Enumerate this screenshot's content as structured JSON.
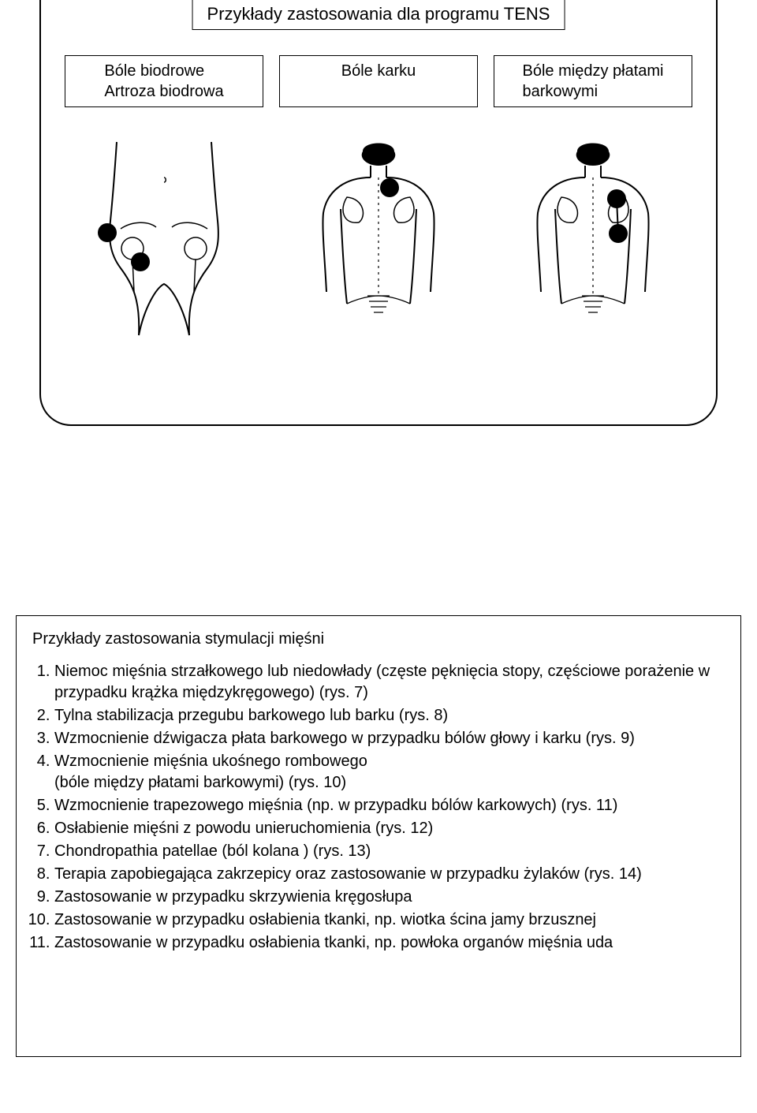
{
  "diagram": {
    "title": "Przykłady zastosowania dla programu TENS",
    "labels": [
      "Bóle biodrowe\nArtroza biodrowa",
      "Bóle karku",
      "Bóle między płatami\nbarkowymi"
    ],
    "stroke": "#000000",
    "fill": "#ffffff",
    "electrode_color": "#000000",
    "electrode_radius": 12,
    "electrodes": {
      "hip": [
        [
          38,
          125
        ],
        [
          80,
          162
        ]
      ],
      "neck": [
        [
          124,
          68
        ]
      ],
      "shoulder": [
        [
          140,
          82
        ],
        [
          142,
          126
        ]
      ]
    }
  },
  "list": {
    "heading": "Przykłady zastosowania stymulacji mięśni",
    "items": [
      "Niemoc mięśnia strzałkowego lub niedowłady (częste pęknięcia stopy, częściowe porażenie w przypadku krążka międzykręgowego) (rys. 7)",
      "Tylna stabilizacja przegubu barkowego lub barku (rys. 8)",
      "Wzmocnienie dźwigacza płata barkowego w przypadku bólów głowy i karku (rys. 9)",
      "Wzmocnienie mięśnia ukośnego rombowego\n(bóle między płatami barkowymi) (rys. 10)",
      "Wzmocnienie trapezowego mięśnia (np. w przypadku bólów karkowych) (rys. 11)",
      "Osłabienie mięśni z powodu unieruchomienia (rys. 12)",
      "Chondropathia patellae (ból kolana ) (rys. 13)",
      "Terapia zapobiegająca zakrzepicy oraz zastosowanie w przypadku żylaków (rys. 14)",
      "Zastosowanie w przypadku skrzywienia kręgosłupa",
      "Zastosowanie w przypadku osłabienia tkanki, np. wiotka ścina jamy brzusznej",
      "Zastosowanie w przypadku osłabienia tkanki, np. powłoka organów mięśnia uda"
    ]
  }
}
